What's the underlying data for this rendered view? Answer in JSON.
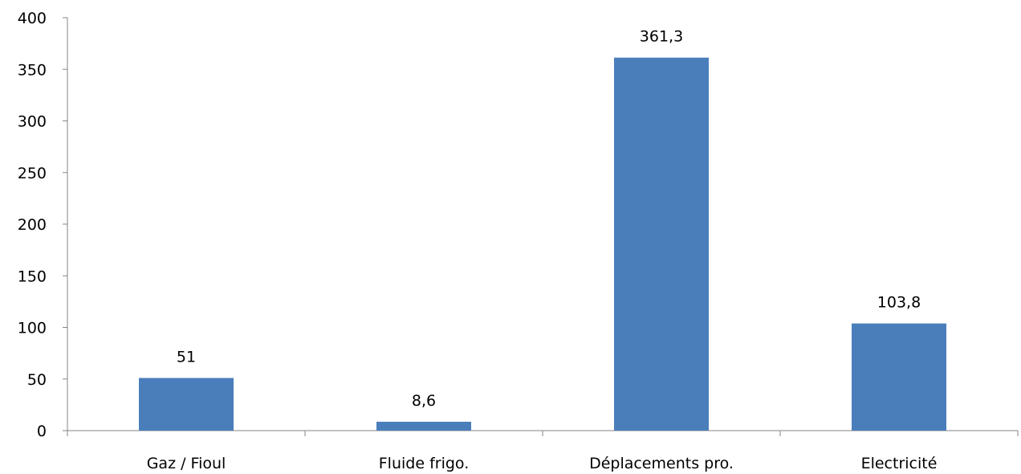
{
  "chart_data": {
    "type": "bar",
    "categories": [
      "Gaz / Fioul",
      "Fluide frigo.",
      "Déplacements pro.",
      "Electricité"
    ],
    "values": [
      51,
      8.6,
      361.3,
      103.8
    ],
    "data_labels": [
      "51",
      "8,6",
      "361,3",
      "103,8"
    ],
    "y_ticks": [
      "0",
      "50",
      "100",
      "150",
      "200",
      "250",
      "300",
      "350",
      "400"
    ],
    "ylim": [
      0,
      400
    ],
    "grid": false,
    "legend": "none",
    "bar_color": "#4a7ebb",
    "axis_color": "#868686"
  }
}
